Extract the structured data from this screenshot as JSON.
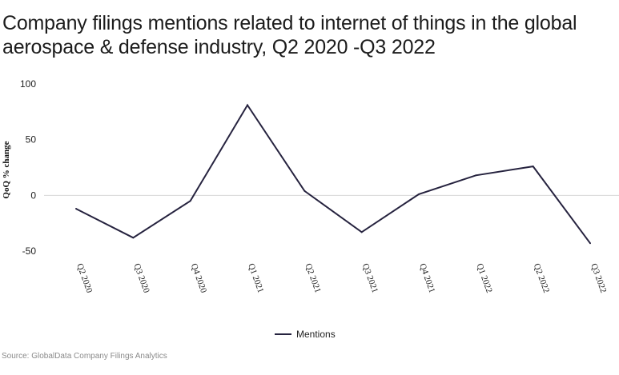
{
  "title": "Company filings mentions related to internet of things in the global aerospace & defense industry, Q2 2020 -Q3 2022",
  "source": "Source: GlobalData Company Filings Analytics",
  "chart_data": {
    "type": "line",
    "title": "Company filings mentions related to internet of things in the global aerospace & defense industry, Q2 2020 -Q3 2022",
    "ylabel": "QoQ % change",
    "xlabel": "",
    "categories": [
      "Q2 2020",
      "Q3 2020",
      "Q4 2020",
      "Q1 2021",
      "Q2 2021",
      "Q3 2021",
      "Q4 2021",
      "Q1 2022",
      "Q2 2022",
      "Q3 2022"
    ],
    "series": [
      {
        "name": "Mentions",
        "values": [
          -12,
          -38,
          -5,
          81,
          4,
          -33,
          1,
          18,
          26,
          -43
        ],
        "color": "#26233f"
      }
    ],
    "ylim": [
      -50,
      100
    ],
    "yticks": [
      100,
      50,
      0,
      -50
    ],
    "grid": "zero-line only",
    "legend": "bottom-center"
  }
}
